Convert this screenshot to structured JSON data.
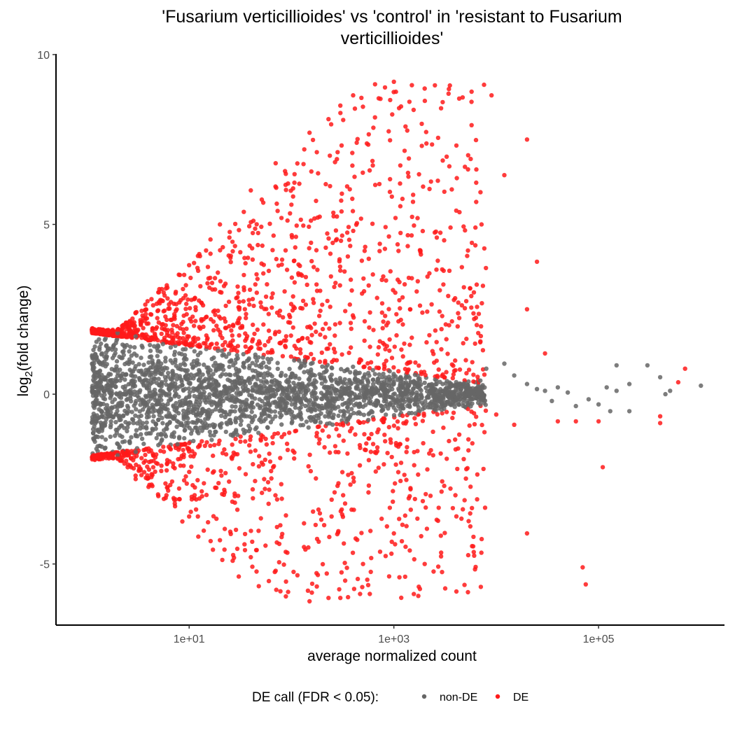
{
  "chart_data": {
    "type": "scatter",
    "title_lines": [
      "'Fusarium verticillioides' vs 'control' in 'resistant to Fusarium",
      "verticillioides'"
    ],
    "xlabel": "average normalized count",
    "ylabel_main": "log",
    "ylabel_sub": "2",
    "ylabel_rest": "(fold change)",
    "x_scale": "log10",
    "xlim": [
      0.5,
      1700000
    ],
    "ylim": [
      -6.8,
      10
    ],
    "x_ticks": [
      {
        "value": 10,
        "label": "1e+01"
      },
      {
        "value": 1000,
        "label": "1e+03"
      },
      {
        "value": 100000,
        "label": "1e+05"
      }
    ],
    "y_ticks": [
      {
        "value": 10,
        "label": "10"
      },
      {
        "value": 5,
        "label": "5"
      },
      {
        "value": 0,
        "label": "0"
      },
      {
        "value": -5,
        "label": "-5"
      }
    ],
    "grid": false,
    "legend": {
      "position": "bottom",
      "title": "DE call (FDR < 0.05):",
      "entries": [
        {
          "label": "non-DE",
          "color": "#666666"
        },
        {
          "label": "DE",
          "color": "#ff1a1a"
        }
      ]
    },
    "series": [
      {
        "name": "non-DE",
        "color": "#666666",
        "points": [
          [
            1.2,
            1.4
          ],
          [
            1.5,
            1.6
          ],
          [
            2,
            1.8
          ],
          [
            3,
            1.7
          ],
          [
            5,
            1.4
          ],
          [
            8,
            1.2
          ],
          [
            12,
            1.0
          ],
          [
            1.2,
            -1.4
          ],
          [
            1.5,
            -1.6
          ],
          [
            2,
            -1.8
          ],
          [
            3,
            -1.7
          ],
          [
            5,
            -1.5
          ],
          [
            8,
            -1.3
          ],
          [
            12,
            -1.1
          ],
          [
            20,
            0.8
          ],
          [
            50,
            0.6
          ],
          [
            100,
            0.5
          ],
          [
            300,
            0.4
          ],
          [
            1000,
            0.35
          ],
          [
            3000,
            0.3
          ],
          [
            7000,
            0.4
          ],
          [
            20,
            -0.9
          ],
          [
            50,
            -0.7
          ],
          [
            100,
            -0.6
          ],
          [
            300,
            -0.5
          ],
          [
            1000,
            -0.4
          ],
          [
            3000,
            -0.35
          ],
          [
            7000,
            -0.3
          ],
          [
            8000,
            0.75
          ],
          [
            12000,
            0.9
          ],
          [
            15000,
            0.55
          ],
          [
            20000,
            0.3
          ],
          [
            25000,
            0.15
          ],
          [
            30000,
            0.1
          ],
          [
            35000,
            -0.2
          ],
          [
            40000,
            0.2
          ],
          [
            50000,
            0.05
          ],
          [
            60000,
            -0.35
          ],
          [
            80000,
            -0.15
          ],
          [
            100000,
            -0.3
          ],
          [
            120000,
            0.2
          ],
          [
            150000,
            0.85
          ],
          [
            200000,
            0.3
          ],
          [
            300000,
            0.85
          ],
          [
            400000,
            0.5
          ],
          [
            450000,
            0.0
          ],
          [
            500000,
            0.1
          ],
          [
            1000000,
            0.25
          ],
          [
            200000,
            -0.5
          ],
          [
            130000,
            -0.5
          ],
          [
            150000,
            0.1
          ]
        ]
      },
      {
        "name": "DE",
        "color": "#ff1a1a",
        "points": [
          [
            2,
            1.9
          ],
          [
            3,
            2.4
          ],
          [
            5,
            3.0
          ],
          [
            10,
            3.8
          ],
          [
            20,
            5.0
          ],
          [
            40,
            6.0
          ],
          [
            70,
            6.8
          ],
          [
            2,
            -1.9
          ],
          [
            3,
            -2.5
          ],
          [
            5,
            -3.0
          ],
          [
            10,
            -3.6
          ],
          [
            20,
            -4.3
          ],
          [
            40,
            -4.8
          ],
          [
            70,
            -5.2
          ],
          [
            150,
            7.7
          ],
          [
            230,
            8.1
          ],
          [
            300,
            8.5
          ],
          [
            400,
            8.8
          ],
          [
            1000,
            9.2
          ],
          [
            1500,
            9.1
          ],
          [
            2000,
            9.0
          ],
          [
            3000,
            8.6
          ],
          [
            9000,
            8.8
          ],
          [
            20000,
            7.5
          ],
          [
            12000,
            6.45
          ],
          [
            25000,
            3.9
          ],
          [
            20000,
            2.5
          ],
          [
            30000,
            1.2
          ],
          [
            150,
            -6.1
          ],
          [
            230,
            -6.0
          ],
          [
            300,
            -6.0
          ],
          [
            500,
            -5.0
          ],
          [
            1000,
            -4.1
          ],
          [
            2000,
            -5.0
          ],
          [
            6000,
            -4.2
          ],
          [
            20000,
            -4.1
          ],
          [
            70000,
            -5.1
          ],
          [
            75000,
            -5.6
          ],
          [
            110000,
            -2.15
          ],
          [
            400000,
            -0.85
          ],
          [
            400000,
            -0.65
          ],
          [
            700000,
            0.75
          ],
          [
            600000,
            0.35
          ],
          [
            10000,
            -0.6
          ],
          [
            15000,
            -0.9
          ],
          [
            40000,
            -0.8
          ],
          [
            60000,
            -0.8
          ],
          [
            100000,
            -0.8
          ]
        ]
      }
    ]
  }
}
